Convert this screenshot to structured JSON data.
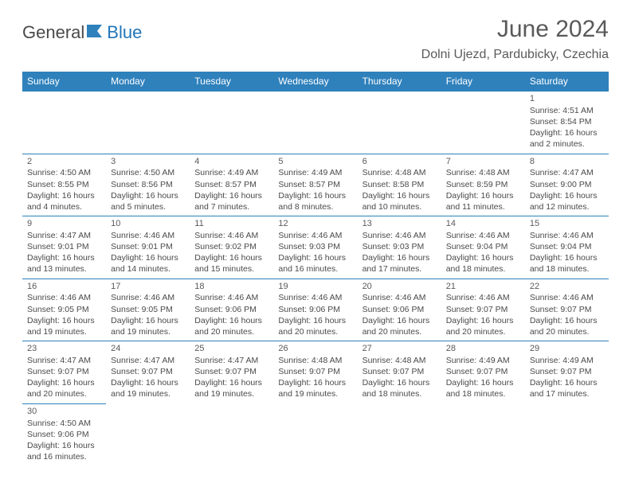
{
  "logo": {
    "part1": "General",
    "part2": "Blue"
  },
  "title": "June 2024",
  "location": "Dolni Ujezd, Pardubicky, Czechia",
  "colors": {
    "headerBg": "#2f81bc",
    "headerText": "#ffffff",
    "accent": "#2176b8",
    "bodyText": "#4a4a4a"
  },
  "dayNames": [
    "Sunday",
    "Monday",
    "Tuesday",
    "Wednesday",
    "Thursday",
    "Friday",
    "Saturday"
  ],
  "weeks": [
    [
      null,
      null,
      null,
      null,
      null,
      null,
      {
        "n": "1",
        "sr": "Sunrise: 4:51 AM",
        "ss": "Sunset: 8:54 PM",
        "d1": "Daylight: 16 hours",
        "d2": "and 2 minutes."
      }
    ],
    [
      {
        "n": "2",
        "sr": "Sunrise: 4:50 AM",
        "ss": "Sunset: 8:55 PM",
        "d1": "Daylight: 16 hours",
        "d2": "and 4 minutes."
      },
      {
        "n": "3",
        "sr": "Sunrise: 4:50 AM",
        "ss": "Sunset: 8:56 PM",
        "d1": "Daylight: 16 hours",
        "d2": "and 5 minutes."
      },
      {
        "n": "4",
        "sr": "Sunrise: 4:49 AM",
        "ss": "Sunset: 8:57 PM",
        "d1": "Daylight: 16 hours",
        "d2": "and 7 minutes."
      },
      {
        "n": "5",
        "sr": "Sunrise: 4:49 AM",
        "ss": "Sunset: 8:57 PM",
        "d1": "Daylight: 16 hours",
        "d2": "and 8 minutes."
      },
      {
        "n": "6",
        "sr": "Sunrise: 4:48 AM",
        "ss": "Sunset: 8:58 PM",
        "d1": "Daylight: 16 hours",
        "d2": "and 10 minutes."
      },
      {
        "n": "7",
        "sr": "Sunrise: 4:48 AM",
        "ss": "Sunset: 8:59 PM",
        "d1": "Daylight: 16 hours",
        "d2": "and 11 minutes."
      },
      {
        "n": "8",
        "sr": "Sunrise: 4:47 AM",
        "ss": "Sunset: 9:00 PM",
        "d1": "Daylight: 16 hours",
        "d2": "and 12 minutes."
      }
    ],
    [
      {
        "n": "9",
        "sr": "Sunrise: 4:47 AM",
        "ss": "Sunset: 9:01 PM",
        "d1": "Daylight: 16 hours",
        "d2": "and 13 minutes."
      },
      {
        "n": "10",
        "sr": "Sunrise: 4:46 AM",
        "ss": "Sunset: 9:01 PM",
        "d1": "Daylight: 16 hours",
        "d2": "and 14 minutes."
      },
      {
        "n": "11",
        "sr": "Sunrise: 4:46 AM",
        "ss": "Sunset: 9:02 PM",
        "d1": "Daylight: 16 hours",
        "d2": "and 15 minutes."
      },
      {
        "n": "12",
        "sr": "Sunrise: 4:46 AM",
        "ss": "Sunset: 9:03 PM",
        "d1": "Daylight: 16 hours",
        "d2": "and 16 minutes."
      },
      {
        "n": "13",
        "sr": "Sunrise: 4:46 AM",
        "ss": "Sunset: 9:03 PM",
        "d1": "Daylight: 16 hours",
        "d2": "and 17 minutes."
      },
      {
        "n": "14",
        "sr": "Sunrise: 4:46 AM",
        "ss": "Sunset: 9:04 PM",
        "d1": "Daylight: 16 hours",
        "d2": "and 18 minutes."
      },
      {
        "n": "15",
        "sr": "Sunrise: 4:46 AM",
        "ss": "Sunset: 9:04 PM",
        "d1": "Daylight: 16 hours",
        "d2": "and 18 minutes."
      }
    ],
    [
      {
        "n": "16",
        "sr": "Sunrise: 4:46 AM",
        "ss": "Sunset: 9:05 PM",
        "d1": "Daylight: 16 hours",
        "d2": "and 19 minutes."
      },
      {
        "n": "17",
        "sr": "Sunrise: 4:46 AM",
        "ss": "Sunset: 9:05 PM",
        "d1": "Daylight: 16 hours",
        "d2": "and 19 minutes."
      },
      {
        "n": "18",
        "sr": "Sunrise: 4:46 AM",
        "ss": "Sunset: 9:06 PM",
        "d1": "Daylight: 16 hours",
        "d2": "and 20 minutes."
      },
      {
        "n": "19",
        "sr": "Sunrise: 4:46 AM",
        "ss": "Sunset: 9:06 PM",
        "d1": "Daylight: 16 hours",
        "d2": "and 20 minutes."
      },
      {
        "n": "20",
        "sr": "Sunrise: 4:46 AM",
        "ss": "Sunset: 9:06 PM",
        "d1": "Daylight: 16 hours",
        "d2": "and 20 minutes."
      },
      {
        "n": "21",
        "sr": "Sunrise: 4:46 AM",
        "ss": "Sunset: 9:07 PM",
        "d1": "Daylight: 16 hours",
        "d2": "and 20 minutes."
      },
      {
        "n": "22",
        "sr": "Sunrise: 4:46 AM",
        "ss": "Sunset: 9:07 PM",
        "d1": "Daylight: 16 hours",
        "d2": "and 20 minutes."
      }
    ],
    [
      {
        "n": "23",
        "sr": "Sunrise: 4:47 AM",
        "ss": "Sunset: 9:07 PM",
        "d1": "Daylight: 16 hours",
        "d2": "and 20 minutes."
      },
      {
        "n": "24",
        "sr": "Sunrise: 4:47 AM",
        "ss": "Sunset: 9:07 PM",
        "d1": "Daylight: 16 hours",
        "d2": "and 19 minutes."
      },
      {
        "n": "25",
        "sr": "Sunrise: 4:47 AM",
        "ss": "Sunset: 9:07 PM",
        "d1": "Daylight: 16 hours",
        "d2": "and 19 minutes."
      },
      {
        "n": "26",
        "sr": "Sunrise: 4:48 AM",
        "ss": "Sunset: 9:07 PM",
        "d1": "Daylight: 16 hours",
        "d2": "and 19 minutes."
      },
      {
        "n": "27",
        "sr": "Sunrise: 4:48 AM",
        "ss": "Sunset: 9:07 PM",
        "d1": "Daylight: 16 hours",
        "d2": "and 18 minutes."
      },
      {
        "n": "28",
        "sr": "Sunrise: 4:49 AM",
        "ss": "Sunset: 9:07 PM",
        "d1": "Daylight: 16 hours",
        "d2": "and 18 minutes."
      },
      {
        "n": "29",
        "sr": "Sunrise: 4:49 AM",
        "ss": "Sunset: 9:07 PM",
        "d1": "Daylight: 16 hours",
        "d2": "and 17 minutes."
      }
    ],
    [
      {
        "n": "30",
        "sr": "Sunrise: 4:50 AM",
        "ss": "Sunset: 9:06 PM",
        "d1": "Daylight: 16 hours",
        "d2": "and 16 minutes."
      },
      null,
      null,
      null,
      null,
      null,
      null
    ]
  ]
}
